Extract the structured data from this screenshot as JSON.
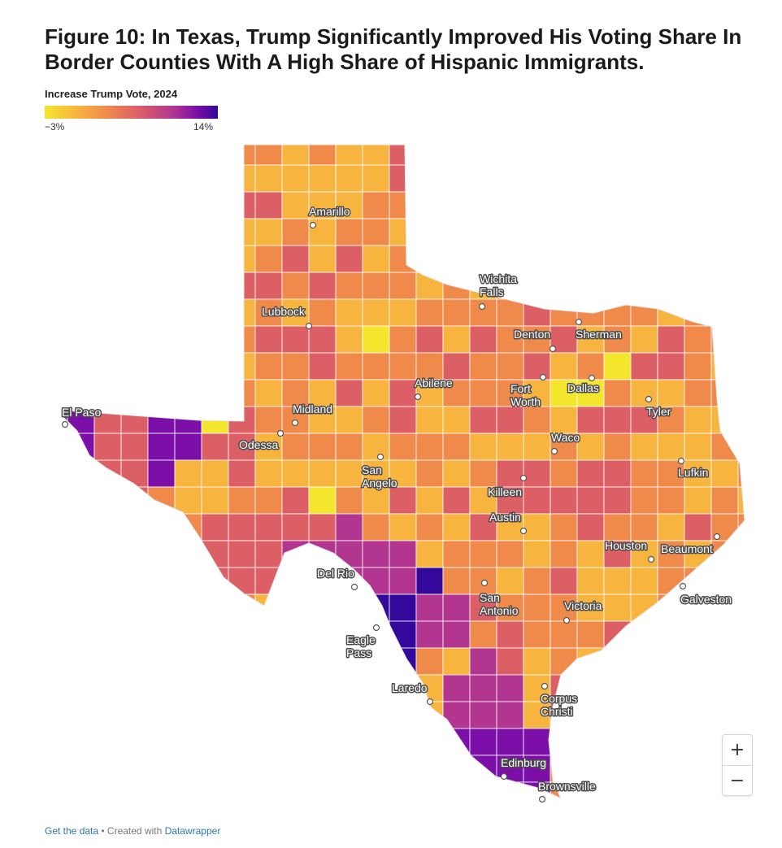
{
  "title": "Figure 10: In Texas, Trump Significantly Improved His Voting Share In Border Counties With A High Share of Hispanic Immigrants.",
  "legend": {
    "title": "Increase Trump Vote, 2024",
    "min": "−3%",
    "max": "14%",
    "scale_min": -3,
    "scale_max": 14,
    "colors": [
      "#f3e62c",
      "#f7b540",
      "#f08a4b",
      "#dc5f66",
      "#b23690",
      "#7b0fa7",
      "#33089a"
    ]
  },
  "cities": [
    "Amarillo",
    "Wichita Falls",
    "Lubbock",
    "Denton",
    "Sherman",
    "Fort Worth",
    "Dallas",
    "Abilene",
    "Tyler",
    "El Paso",
    "Midland",
    "Odessa",
    "Waco",
    "San Angelo",
    "Lufkin",
    "Killeen",
    "Austin",
    "Houston",
    "Beaumont",
    "Del Rio",
    "San Antonio",
    "Victoria",
    "Galveston",
    "Eagle Pass",
    "Laredo",
    "Corpus Christi",
    "Edinburg",
    "Brownsville"
  ],
  "zoom": {
    "in": "+",
    "out": "−"
  },
  "footer": {
    "data_link": "Get the data",
    "separator": " • Created with ",
    "credit_link": "Datawrapper"
  }
}
